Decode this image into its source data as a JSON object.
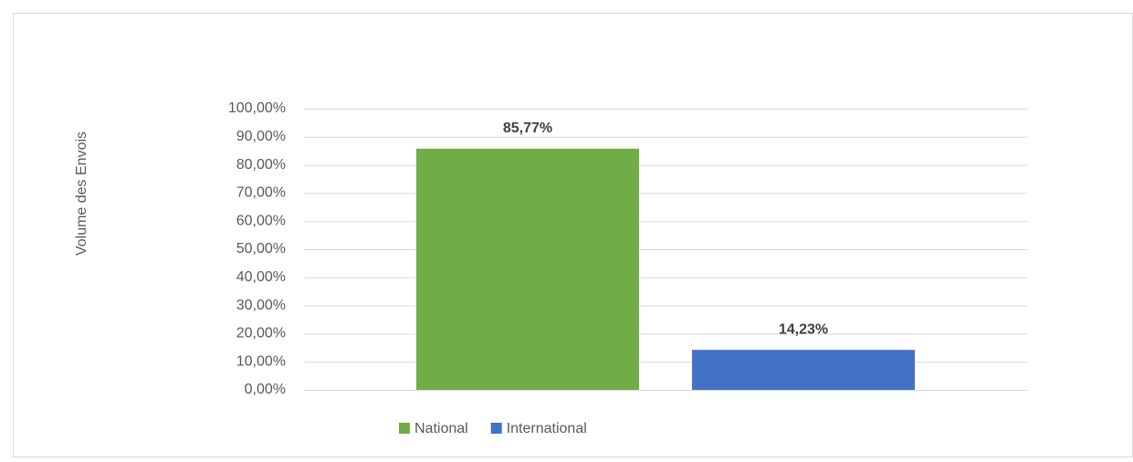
{
  "chart_data": {
    "type": "bar",
    "y_axis_label": "Volume des Envois",
    "categories": [
      "National",
      "International"
    ],
    "values": [
      85.77,
      14.23
    ],
    "value_labels": [
      "85,77%",
      "14,23%"
    ],
    "colors": [
      "#70ad47",
      "#4472c4"
    ],
    "ylim": [
      0,
      100
    ],
    "yticks": [
      {
        "value": 0,
        "label": "0,00%"
      },
      {
        "value": 10,
        "label": "10,00%"
      },
      {
        "value": 20,
        "label": "20,00%"
      },
      {
        "value": 30,
        "label": "30,00%"
      },
      {
        "value": 40,
        "label": "40,00%"
      },
      {
        "value": 50,
        "label": "50,00%"
      },
      {
        "value": 60,
        "label": "60,00%"
      },
      {
        "value": 70,
        "label": "70,00%"
      },
      {
        "value": 80,
        "label": "80,00%"
      },
      {
        "value": 90,
        "label": "90,00%"
      },
      {
        "value": 100,
        "label": "100,00%"
      }
    ],
    "grid": true,
    "legend": "bottom"
  }
}
